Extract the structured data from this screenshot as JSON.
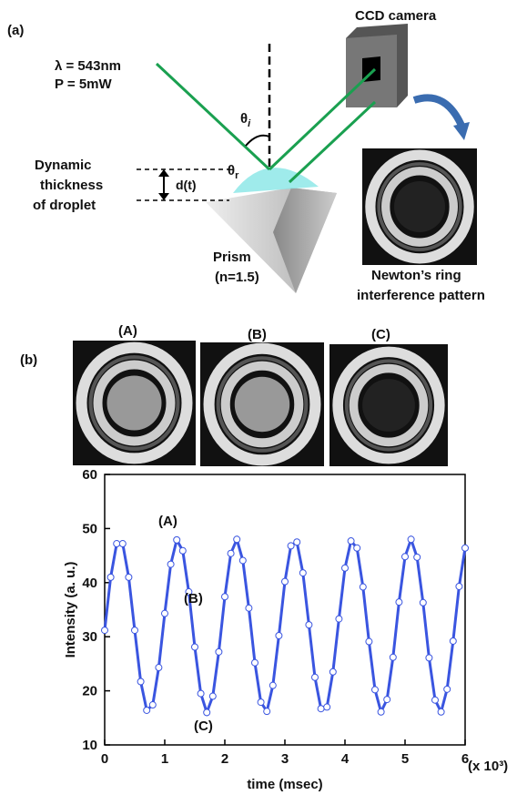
{
  "diagram": {
    "panel_a": "(a)",
    "camera": "CCD camera",
    "wavelength": "λ = 543nm",
    "power": "P = 5mW",
    "theta_i": {
      "symbol": "θ",
      "sub": "i"
    },
    "theta_r": {
      "symbol": "θ",
      "sub": "r"
    },
    "thickness_label": [
      "Dynamic",
      "thickness",
      "of droplet"
    ],
    "thickness_symbol": "d(t)",
    "prism": [
      "Prism",
      "(n=1.5)"
    ],
    "pattern": [
      "Newton’s ring",
      "interference pattern"
    ],
    "panel_b": "(b)",
    "snapshots": [
      "(A)",
      "(B)",
      "(C)"
    ]
  },
  "chart_data": {
    "type": "line",
    "xlabel": "time (msec)",
    "ylabel": "Intensity (a. u.)",
    "x_multiplier": "(x 10³)",
    "xlim": [
      0,
      6
    ],
    "xticks": [
      0,
      1,
      2,
      3,
      4,
      5,
      6
    ],
    "ylim": [
      10,
      60
    ],
    "yticks": [
      10,
      20,
      30,
      40,
      50,
      60
    ],
    "annotations": [
      "(A)",
      "(B)",
      "(C)"
    ],
    "annotation_color": "#e02020",
    "series": [
      {
        "color": "#3a55e0",
        "x": [
          0,
          0.1,
          0.2,
          0.3,
          0.4,
          0.5,
          0.6,
          0.7,
          0.8,
          0.9,
          1,
          1.1,
          1.2,
          1.3,
          1.4,
          1.5,
          1.6,
          1.7,
          1.8,
          1.9,
          2,
          2.1,
          2.2,
          2.3,
          2.4,
          2.5,
          2.6,
          2.7,
          2.8,
          2.9,
          3,
          3.1,
          3.2,
          3.3,
          3.4,
          3.5,
          3.6,
          3.7,
          3.8,
          3.9,
          4,
          4.1,
          4.2,
          4.3,
          4.4,
          4.5,
          4.6,
          4.7,
          4.8,
          4.9,
          5,
          5.1,
          5.2,
          5.3,
          5.4,
          5.5,
          5.6,
          5.7,
          5.8,
          5.9,
          6
        ],
        "values": [
          31.2,
          41.0,
          47.2,
          47.2,
          41.0,
          31.2,
          21.7,
          16.4,
          17.4,
          24.3,
          34.3,
          43.4,
          47.9,
          45.9,
          38.3,
          28.1,
          19.5,
          16.0,
          19.0,
          27.2,
          37.4,
          45.4,
          48.0,
          44.1,
          35.3,
          25.2,
          17.9,
          16.2,
          21.0,
          30.2,
          40.2,
          46.8,
          47.5,
          41.8,
          32.2,
          22.5,
          16.7,
          17.0,
          23.5,
          33.3,
          42.7,
          47.7,
          46.4,
          39.2,
          29.1,
          20.2,
          16.1,
          18.4,
          26.2,
          36.4,
          44.8,
          48.0,
          44.7,
          36.3,
          26.1,
          18.3,
          16.1,
          20.3,
          29.2,
          39.3,
          46.4
        ]
      }
    ]
  }
}
